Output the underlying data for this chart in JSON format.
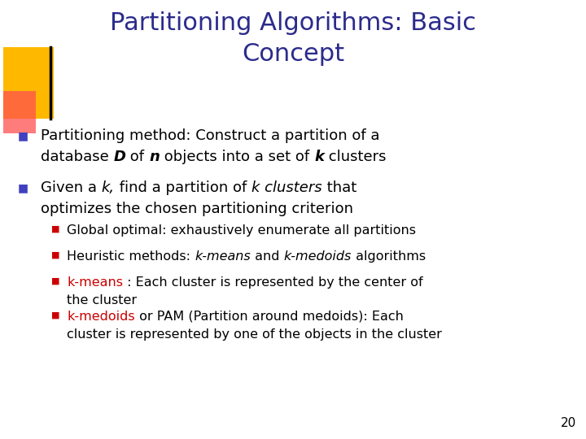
{
  "title_line1": "Partitioning Algorithms: Basic",
  "title_line2": "Concept",
  "title_color": "#2B2B8C",
  "background_color": "#FFFFFF",
  "slide_number": "20",
  "bullet_square_color": "#4040C0",
  "sub_bullet_color": "#CC0000",
  "text_color": "#000000",
  "red_text_color": "#CC0000",
  "deco_gold_color": "#FFB800",
  "deco_red_color": "#FF5050",
  "deco_line_color": "#000000"
}
